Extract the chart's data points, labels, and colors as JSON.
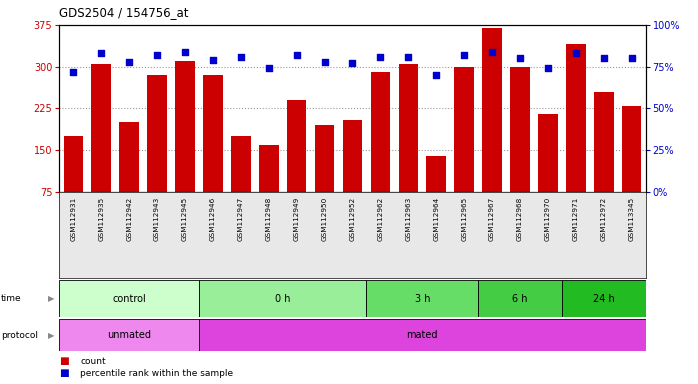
{
  "title": "GDS2504 / 154756_at",
  "samples": [
    "GSM112931",
    "GSM112935",
    "GSM112942",
    "GSM112943",
    "GSM112945",
    "GSM112946",
    "GSM112947",
    "GSM112948",
    "GSM112949",
    "GSM112950",
    "GSM112952",
    "GSM112962",
    "GSM112963",
    "GSM112964",
    "GSM112965",
    "GSM112967",
    "GSM112968",
    "GSM112970",
    "GSM112971",
    "GSM112972",
    "GSM113345"
  ],
  "counts": [
    175,
    305,
    200,
    285,
    310,
    285,
    175,
    160,
    240,
    195,
    205,
    290,
    305,
    140,
    300,
    370,
    300,
    215,
    340,
    255,
    230
  ],
  "percentiles": [
    72,
    83,
    78,
    82,
    84,
    79,
    81,
    74,
    82,
    78,
    77,
    81,
    81,
    70,
    82,
    84,
    80,
    74,
    83,
    80,
    80
  ],
  "ylim_left": [
    75,
    375
  ],
  "ylim_right": [
    0,
    100
  ],
  "yticks_left": [
    75,
    150,
    225,
    300,
    375
  ],
  "yticks_right": [
    0,
    25,
    50,
    75,
    100
  ],
  "bar_color": "#cc0000",
  "dot_color": "#0000cc",
  "time_groups": [
    {
      "label": "control",
      "start": 0,
      "end": 5,
      "color": "#ccffcc"
    },
    {
      "label": "0 h",
      "start": 5,
      "end": 11,
      "color": "#99ee99"
    },
    {
      "label": "3 h",
      "start": 11,
      "end": 15,
      "color": "#66dd66"
    },
    {
      "label": "6 h",
      "start": 15,
      "end": 18,
      "color": "#44cc44"
    },
    {
      "label": "24 h",
      "start": 18,
      "end": 21,
      "color": "#22bb22"
    }
  ],
  "protocol_groups": [
    {
      "label": "unmated",
      "start": 0,
      "end": 5,
      "color": "#ee88ee"
    },
    {
      "label": "mated",
      "start": 5,
      "end": 21,
      "color": "#dd44dd"
    }
  ],
  "legend_count_label": "count",
  "legend_pct_label": "percentile rank within the sample"
}
